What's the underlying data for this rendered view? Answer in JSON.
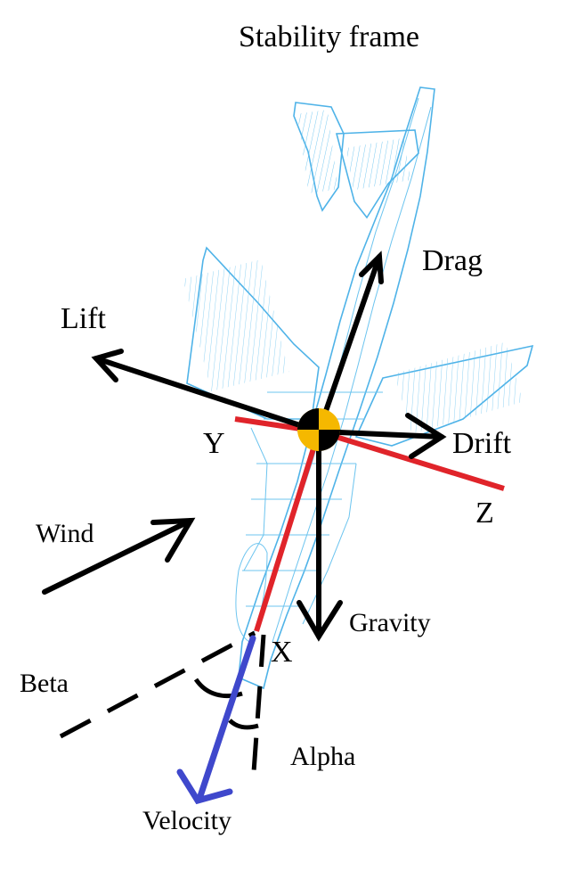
{
  "title": "Stability frame",
  "labels": {
    "drag": "Drag",
    "lift": "Lift",
    "y_axis": "Y",
    "drift": "Drift",
    "z_axis": "Z",
    "wind": "Wind",
    "gravity": "Gravity",
    "x_axis": "X",
    "beta": "Beta",
    "alpha": "Alpha",
    "velocity": "Velocity"
  },
  "colors": {
    "force_arrows": "#000000",
    "body_axes": "#e0242a",
    "velocity": "#3f48cc",
    "center_of_gravity": "#f5b800",
    "aircraft_outline": "#4fb3e8"
  }
}
